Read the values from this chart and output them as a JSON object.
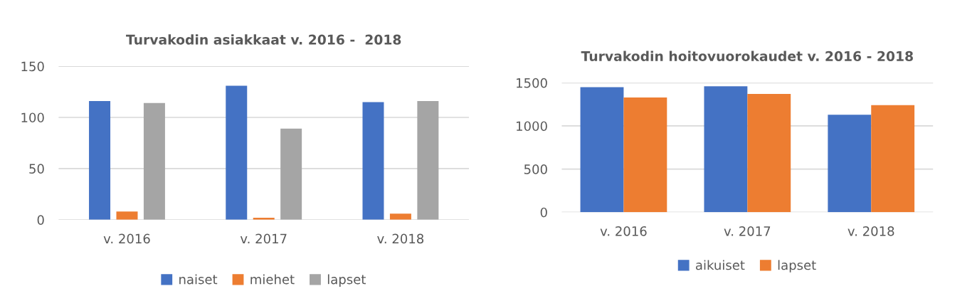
{
  "chart_data": [
    {
      "type": "bar",
      "title": "Turvakodin asiakkaat v. 2016 -  2018",
      "categories": [
        "v. 2016",
        "v. 2017",
        "v. 2018"
      ],
      "series": [
        {
          "name": "naiset",
          "color": "#4472c4",
          "values": [
            116,
            131,
            115
          ]
        },
        {
          "name": "miehet",
          "color": "#ed7d31",
          "values": [
            8,
            2,
            6
          ]
        },
        {
          "name": "lapset",
          "color": "#a5a5a5",
          "values": [
            114,
            89,
            116
          ]
        }
      ],
      "ylim": [
        0,
        150
      ],
      "yticks": [
        0,
        50,
        100,
        150
      ],
      "grid": "y",
      "legend": "bottom"
    },
    {
      "type": "bar",
      "title": "Turvakodin hoitovuorokaudet v. 2016 - 2018",
      "categories": [
        "v. 2016",
        "v. 2017",
        "v. 2018"
      ],
      "series": [
        {
          "name": "aikuiset",
          "color": "#4472c4",
          "values": [
            1450,
            1460,
            1130
          ]
        },
        {
          "name": "lapset",
          "color": "#ed7d31",
          "values": [
            1330,
            1370,
            1240
          ]
        }
      ],
      "ylim": [
        0,
        1500
      ],
      "yticks": [
        0,
        500,
        1000,
        1500
      ],
      "grid": "y",
      "legend": "bottom"
    }
  ]
}
